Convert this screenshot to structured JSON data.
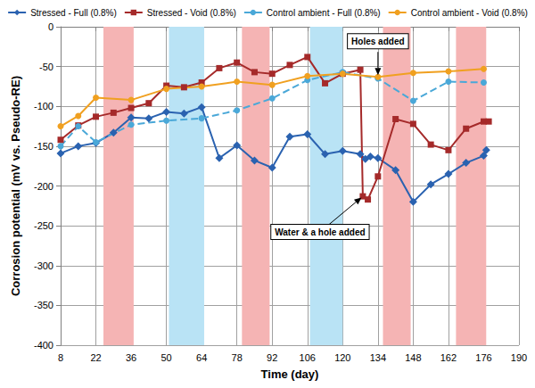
{
  "chart_data": {
    "type": "line",
    "x_label": "Time (day)",
    "y_label": "Corrosion potential (mV vs. Pseudo-RE)",
    "xlim": [
      8,
      190
    ],
    "xticks": [
      8,
      22,
      36,
      50,
      64,
      78,
      92,
      106,
      120,
      134,
      148,
      162,
      176,
      190
    ],
    "ylim": [
      -400,
      0
    ],
    "yticks": [
      -400,
      -350,
      -300,
      -250,
      -200,
      -150,
      -100,
      -50,
      0
    ],
    "grid": true,
    "legend": "top",
    "shaded_regions": [
      {
        "from": 25,
        "to": 37,
        "color": "#f5b4b4"
      },
      {
        "from": 51,
        "to": 65,
        "color": "#b9e3f5"
      },
      {
        "from": 80,
        "to": 91,
        "color": "#f5b4b4"
      },
      {
        "from": 107,
        "to": 120,
        "color": "#b9e3f5"
      },
      {
        "from": 136,
        "to": 147,
        "color": "#f5b4b4"
      },
      {
        "from": 165,
        "to": 177,
        "color": "#f5b4b4"
      }
    ],
    "annotations": [
      {
        "text": "Holes added",
        "x": 134,
        "y": -63
      },
      {
        "text": "Water & a hole added",
        "x": 128,
        "y": -213
      }
    ],
    "series": [
      {
        "name": "Stressed - Full (0.8%)",
        "color": "#2a62b0",
        "marker": "diamond",
        "line_style": "solid",
        "x": [
          8,
          15,
          22,
          29,
          36,
          43,
          50,
          57,
          64,
          71,
          78,
          85,
          92,
          99,
          106,
          113,
          120,
          127,
          129,
          131,
          134,
          141,
          148,
          155,
          162,
          169,
          176,
          177
        ],
        "values": [
          -159,
          -150,
          -146,
          -133,
          -114,
          -115,
          -107,
          -109,
          -101,
          -165,
          -149,
          -168,
          -177,
          -138,
          -135,
          -160,
          -156,
          -160,
          -166,
          -163,
          -165,
          -180,
          -220,
          -198,
          -185,
          -171,
          -162,
          -155
        ]
      },
      {
        "name": "Stressed - Void (0.8%)",
        "color": "#a52a2a",
        "marker": "rect",
        "line_style": "solid",
        "x": [
          8,
          15,
          22,
          29,
          36,
          43,
          50,
          57,
          64,
          71,
          78,
          85,
          92,
          99,
          106,
          113,
          120,
          127,
          128,
          130,
          134,
          141,
          148,
          155,
          162,
          169,
          176,
          178
        ],
        "values": [
          -142,
          -124,
          -113,
          -108,
          -102,
          -96,
          -74,
          -76,
          -70,
          -52,
          -45,
          -57,
          -59,
          -48,
          -38,
          -71,
          -59,
          -54,
          -213,
          -217,
          -188,
          -116,
          -122,
          -148,
          -155,
          -128,
          -119,
          -119
        ]
      },
      {
        "name": "Control ambient - Full (0.8%)",
        "color": "#4aa8d8",
        "marker": "circle",
        "line_style": "dashed",
        "x": [
          8,
          15,
          22,
          36,
          50,
          64,
          78,
          92,
          106,
          120,
          134,
          148,
          162,
          176
        ],
        "values": [
          -150,
          -125,
          -145,
          -123,
          -118,
          -115,
          -105,
          -90,
          -67,
          -57,
          -65,
          -93,
          -69,
          -70
        ]
      },
      {
        "name": "Control ambient - Void (0.8%)",
        "color": "#f0a020",
        "marker": "circle",
        "line_style": "solid",
        "x": [
          8,
          15,
          22,
          36,
          50,
          64,
          78,
          92,
          106,
          120,
          134,
          148,
          162,
          176
        ],
        "values": [
          -125,
          -112,
          -89,
          -92,
          -78,
          -75,
          -69,
          -73,
          -62,
          -59,
          -63,
          -58,
          -56,
          -53
        ]
      }
    ]
  }
}
